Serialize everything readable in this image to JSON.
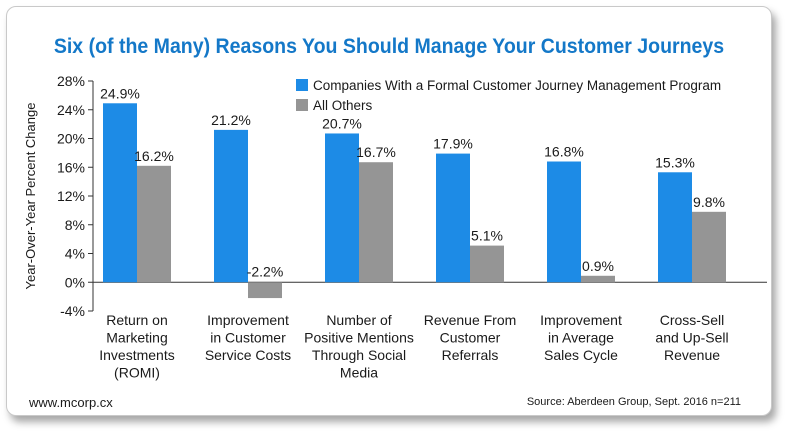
{
  "header": {
    "title": "Six (of the Many) Reasons You Should Manage Your Customer Journeys"
  },
  "footer": {
    "website": "www.mcorp.cx",
    "source": "Source: Aberdeen Group, Sept. 2016 n=211"
  },
  "colors": {
    "title": "#1478c8",
    "series_a": "#1d8be6",
    "series_b": "#959595"
  },
  "chart_data": {
    "type": "bar",
    "title": "Six (of the Many) Reasons You Should Manage Your Customer Journeys",
    "ylabel": "Year-Over-Year Percent Change",
    "xlabel": "",
    "ylim": [
      -4,
      28
    ],
    "yticks": [
      -4,
      0,
      4,
      8,
      12,
      16,
      20,
      24,
      28
    ],
    "ytick_labels": [
      "-4%",
      "0%",
      "4%",
      "8%",
      "12%",
      "16%",
      "20%",
      "24%",
      "28%"
    ],
    "grid": false,
    "legend_position": "top-right",
    "categories": [
      [
        "Return on",
        "Marketing",
        "Investments",
        "(ROMI)"
      ],
      [
        "Improvement",
        "in Customer",
        "Service Costs"
      ],
      [
        "Number of",
        "Positive Mentions",
        "Through Social",
        "Media"
      ],
      [
        "Revenue From",
        "Customer",
        "Referrals"
      ],
      [
        "Improvement",
        "in Average",
        "Sales Cycle"
      ],
      [
        "Cross-Sell",
        "and Up-Sell",
        "Revenue"
      ]
    ],
    "series": [
      {
        "name": "Companies With a Formal Customer Journey Management Program",
        "color": "#1d8be6",
        "values": [
          24.9,
          21.2,
          20.7,
          17.9,
          16.8,
          15.3
        ],
        "labels": [
          "24.9%",
          "21.2%",
          "20.7%",
          "17.9%",
          "16.8%",
          "15.3%"
        ]
      },
      {
        "name": "All Others",
        "color": "#959595",
        "values": [
          16.2,
          -2.2,
          16.7,
          5.1,
          0.9,
          9.8
        ],
        "labels": [
          "16.2%",
          "-2.2%",
          "16.7%",
          "5.1%",
          "0.9%",
          "9.8%"
        ]
      }
    ]
  }
}
